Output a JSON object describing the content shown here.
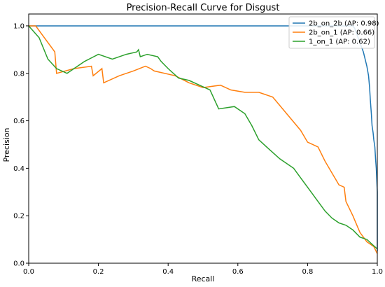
{
  "chart_data": {
    "type": "line",
    "title": "Precision-Recall Curve for Disgust",
    "xlabel": "Recall",
    "ylabel": "Precision",
    "xlim": [
      0.0,
      1.0
    ],
    "ylim": [
      0.0,
      1.05
    ],
    "xticks": [
      "0.0",
      "0.2",
      "0.4",
      "0.6",
      "0.8",
      "1.0"
    ],
    "yticks": [
      "0.0",
      "0.2",
      "0.4",
      "0.6",
      "0.8",
      "1.0"
    ],
    "grid": false,
    "legend_position": "top-right",
    "series": [
      {
        "name": "2b_on_2b (AP: 0.98)",
        "color": "#1f77b4",
        "x": [
          0.0,
          0.93,
          0.935,
          0.94,
          0.945,
          0.95,
          0.955,
          0.96,
          0.965,
          0.97,
          0.975,
          0.978,
          0.98,
          0.983,
          0.985,
          0.988,
          0.99,
          0.993,
          0.995,
          0.997,
          1.0,
          1.0
        ],
        "y": [
          1.0,
          1.0,
          0.99,
          0.97,
          0.95,
          0.93,
          0.91,
          0.89,
          0.86,
          0.83,
          0.79,
          0.74,
          0.69,
          0.63,
          0.58,
          0.55,
          0.52,
          0.49,
          0.44,
          0.4,
          0.3,
          0.05
        ]
      },
      {
        "name": "2b_on_1 (AP: 0.66)",
        "color": "#ff7f0e",
        "x": [
          0.0,
          0.02,
          0.075,
          0.08,
          0.13,
          0.18,
          0.185,
          0.21,
          0.215,
          0.26,
          0.3,
          0.335,
          0.35,
          0.36,
          0.42,
          0.46,
          0.5,
          0.55,
          0.58,
          0.62,
          0.66,
          0.7,
          0.74,
          0.78,
          0.8,
          0.83,
          0.85,
          0.87,
          0.89,
          0.905,
          0.91,
          0.93,
          0.95,
          0.97,
          0.99,
          1.0
        ],
        "y": [
          1.0,
          1.0,
          0.89,
          0.8,
          0.82,
          0.83,
          0.79,
          0.82,
          0.76,
          0.79,
          0.81,
          0.83,
          0.82,
          0.81,
          0.79,
          0.76,
          0.74,
          0.75,
          0.73,
          0.72,
          0.72,
          0.7,
          0.63,
          0.56,
          0.51,
          0.49,
          0.43,
          0.38,
          0.33,
          0.32,
          0.26,
          0.2,
          0.13,
          0.09,
          0.07,
          0.04
        ]
      },
      {
        "name": "1_on_1 (AP: 0.62)",
        "color": "#2ca02c",
        "x": [
          0.0,
          0.03,
          0.055,
          0.08,
          0.11,
          0.16,
          0.2,
          0.24,
          0.28,
          0.31,
          0.315,
          0.32,
          0.34,
          0.37,
          0.38,
          0.4,
          0.43,
          0.46,
          0.49,
          0.52,
          0.545,
          0.59,
          0.62,
          0.64,
          0.66,
          0.69,
          0.72,
          0.76,
          0.78,
          0.81,
          0.83,
          0.85,
          0.87,
          0.89,
          0.91,
          0.93,
          0.95,
          0.97,
          0.985,
          1.0
        ],
        "y": [
          1.0,
          0.95,
          0.86,
          0.82,
          0.8,
          0.85,
          0.88,
          0.86,
          0.88,
          0.89,
          0.9,
          0.87,
          0.88,
          0.87,
          0.85,
          0.82,
          0.78,
          0.77,
          0.75,
          0.73,
          0.65,
          0.66,
          0.63,
          0.58,
          0.52,
          0.48,
          0.44,
          0.4,
          0.36,
          0.3,
          0.26,
          0.22,
          0.19,
          0.17,
          0.16,
          0.14,
          0.11,
          0.1,
          0.08,
          0.06
        ]
      }
    ]
  }
}
